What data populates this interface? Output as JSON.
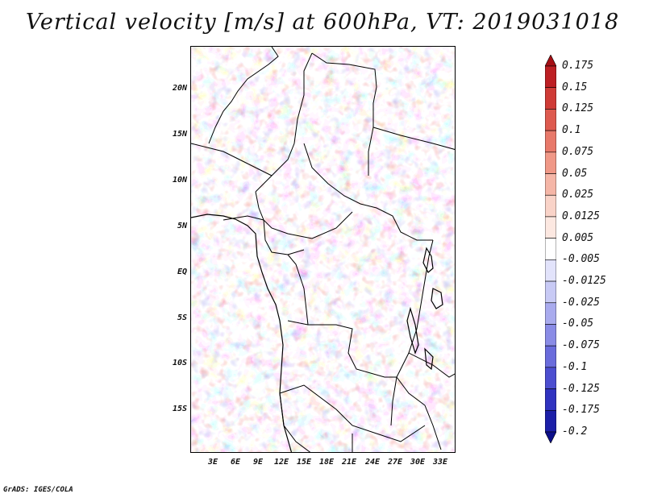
{
  "title": "Vertical velocity [m/s] at 600hPa, VT: 2019031018",
  "map": {
    "region": "Central Africa",
    "lat_labels": [
      "20N",
      "15N",
      "10N",
      "5N",
      "EQ",
      "5S",
      "10S",
      "15S"
    ],
    "lon_labels": [
      "3E",
      "6E",
      "9E",
      "12E",
      "15E",
      "18E",
      "21E",
      "24E",
      "27E",
      "30E",
      "33E"
    ],
    "lat_range": [
      -19,
      25
    ],
    "lon_range": [
      0,
      35
    ]
  },
  "colorbar": {
    "labels": [
      "0.175",
      "0.15",
      "0.125",
      "0.1",
      "0.075",
      "0.05",
      "0.025",
      "0.0125",
      "0.005",
      "-0.005",
      "-0.0125",
      "-0.025",
      "-0.05",
      "-0.075",
      "-0.1",
      "-0.125",
      "-0.175",
      "-0.2"
    ],
    "colors": [
      "#a50f15",
      "#bd1f24",
      "#cf3b36",
      "#de5a4f",
      "#e8796a",
      "#f09887",
      "#f5b6a7",
      "#f9d3c8",
      "#fce8e1",
      "#ffffff",
      "#e2e3fb",
      "#c8caf5",
      "#a9abee",
      "#8a8ce6",
      "#6a6cdc",
      "#4c4ed0",
      "#3033c0",
      "#1c1fa8",
      "#0c0f8a"
    ]
  },
  "credit": "GrADS: IGES/COLA"
}
